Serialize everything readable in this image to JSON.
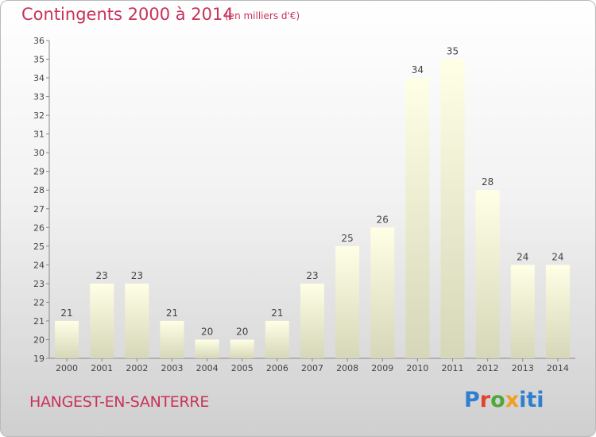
{
  "header": {
    "title": "Contingents 2000 à 2014",
    "unit": "(en milliers d'€)"
  },
  "footer": {
    "place": "HANGEST-EN-SANTERRE",
    "logo_parts": [
      "P",
      "r",
      "o",
      "x",
      "iti"
    ]
  },
  "colors": {
    "title": "#c8325a",
    "bar_top": "#ffffe6",
    "bar_bottom": "#d6d6b8"
  },
  "chart_data": {
    "type": "bar",
    "categories": [
      "2000",
      "2001",
      "2002",
      "2003",
      "2004",
      "2005",
      "2006",
      "2007",
      "2008",
      "2009",
      "2010",
      "2011",
      "2012",
      "2013",
      "2014"
    ],
    "values": [
      21,
      23,
      23,
      21,
      20,
      20,
      21,
      23,
      25,
      26,
      34,
      35,
      28,
      24,
      24
    ],
    "ylim": [
      19,
      36
    ],
    "yticks": [
      19,
      20,
      21,
      22,
      23,
      24,
      25,
      26,
      27,
      28,
      29,
      30,
      31,
      32,
      33,
      34,
      35,
      36
    ],
    "grid": false,
    "data_labels": true
  }
}
